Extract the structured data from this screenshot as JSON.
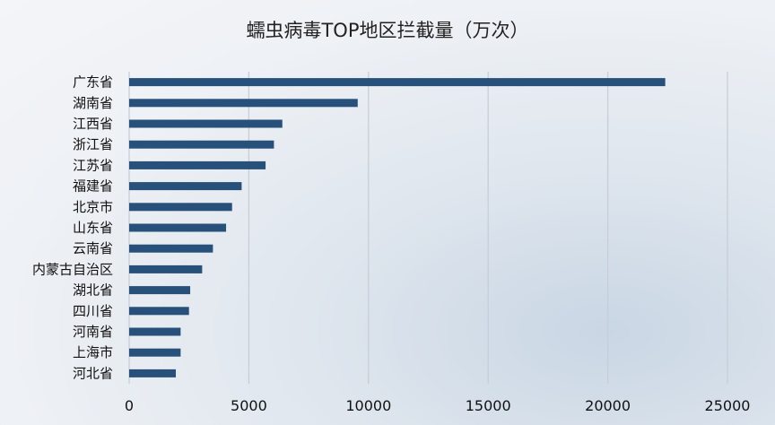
{
  "chart_data": {
    "type": "bar",
    "orientation": "horizontal",
    "title": "蠕虫病毒TOP地区拦截量（万次）",
    "xlabel": "",
    "ylabel": "",
    "xlim": [
      0,
      25000
    ],
    "xticks": [
      "0",
      "5000",
      "10000",
      "15000",
      "20000",
      "25000"
    ],
    "grid": true,
    "bar_color": "#27507a",
    "categories": [
      "广东省",
      "湖南省",
      "江西省",
      "浙江省",
      "江苏省",
      "福建省",
      "北京市",
      "山东省",
      "云南省",
      "内蒙古自治区",
      "湖北省",
      "四川省",
      "河南省",
      "上海市",
      "河北省"
    ],
    "values": [
      22400,
      9550,
      6400,
      6050,
      5700,
      4700,
      4300,
      4050,
      3500,
      3050,
      2550,
      2500,
      2150,
      2150,
      1950
    ]
  }
}
